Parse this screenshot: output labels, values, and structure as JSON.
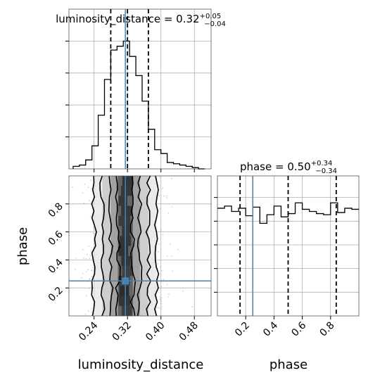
{
  "chart_data": [
    {
      "type": "histogram",
      "panel": "luminosity_distance",
      "title_text": "luminosity_distance = 0.32",
      "title_sup": "+0.05",
      "title_sub": "−0.04",
      "x_range": [
        0.18,
        0.52
      ],
      "bins": [
        0.19,
        0.205,
        0.22,
        0.235,
        0.25,
        0.265,
        0.28,
        0.295,
        0.31,
        0.325,
        0.34,
        0.355,
        0.37,
        0.385,
        0.4,
        0.415,
        0.43,
        0.445,
        0.46,
        0.475,
        0.49,
        0.505
      ],
      "counts": [
        0.02,
        0.03,
        0.07,
        0.18,
        0.42,
        0.7,
        0.93,
        0.96,
        1.0,
        0.88,
        0.73,
        0.53,
        0.31,
        0.15,
        0.12,
        0.05,
        0.04,
        0.03,
        0.02,
        0.01,
        0.0
      ],
      "quantiles": [
        0.28,
        0.32,
        0.37
      ],
      "truth": 0.315,
      "grid": true
    },
    {
      "type": "histogram",
      "panel": "phase",
      "title_text": "phase = 0.50",
      "title_sup": "+0.34",
      "title_sub": "−0.34",
      "x_range": [
        0.0,
        1.0
      ],
      "bins": [
        0.0,
        0.05,
        0.1,
        0.15,
        0.2,
        0.25,
        0.3,
        0.35,
        0.4,
        0.45,
        0.5,
        0.55,
        0.6,
        0.65,
        0.7,
        0.75,
        0.8,
        0.85,
        0.9,
        0.95,
        1.0
      ],
      "counts": [
        1.0,
        1.02,
        0.97,
        1.0,
        0.93,
        1.01,
        0.86,
        0.94,
        1.02,
        0.92,
        0.95,
        1.05,
        0.99,
        0.97,
        0.95,
        0.94,
        1.05,
        0.96,
        1.0,
        0.99
      ],
      "quantiles": [
        0.16,
        0.5,
        0.84
      ],
      "truth": 0.25,
      "grid": true
    },
    {
      "type": "scatter_2d",
      "panel": "luminosity_distance-phase",
      "x_range": [
        0.18,
        0.52
      ],
      "y_range": [
        0.0,
        1.0
      ],
      "contour_levels_x_halfwidths": [
        0.018,
        0.035,
        0.055,
        0.075
      ],
      "center_x": 0.315,
      "truth": [
        0.315,
        0.25
      ],
      "grid": true
    }
  ],
  "axes": {
    "x1_label": "luminosity_distance",
    "x2_label": "phase",
    "y_label": "phase",
    "x1_ticks": [
      "0.24",
      "0.32",
      "0.40",
      "0.48"
    ],
    "x1_tick_values": [
      0.24,
      0.32,
      0.4,
      0.48
    ],
    "x2_ticks": [
      "0.2",
      "0.4",
      "0.6",
      "0.8"
    ],
    "x2_tick_values": [
      0.2,
      0.4,
      0.6,
      0.8
    ],
    "y_ticks": [
      "0.2",
      "0.4",
      "0.6",
      "0.8"
    ],
    "y_tick_values": [
      0.2,
      0.4,
      0.6,
      0.8
    ]
  },
  "colors": {
    "truth": "#4682b4",
    "hist": "#000000",
    "quantile": "#000000",
    "scatter": "#9a9a9a"
  }
}
